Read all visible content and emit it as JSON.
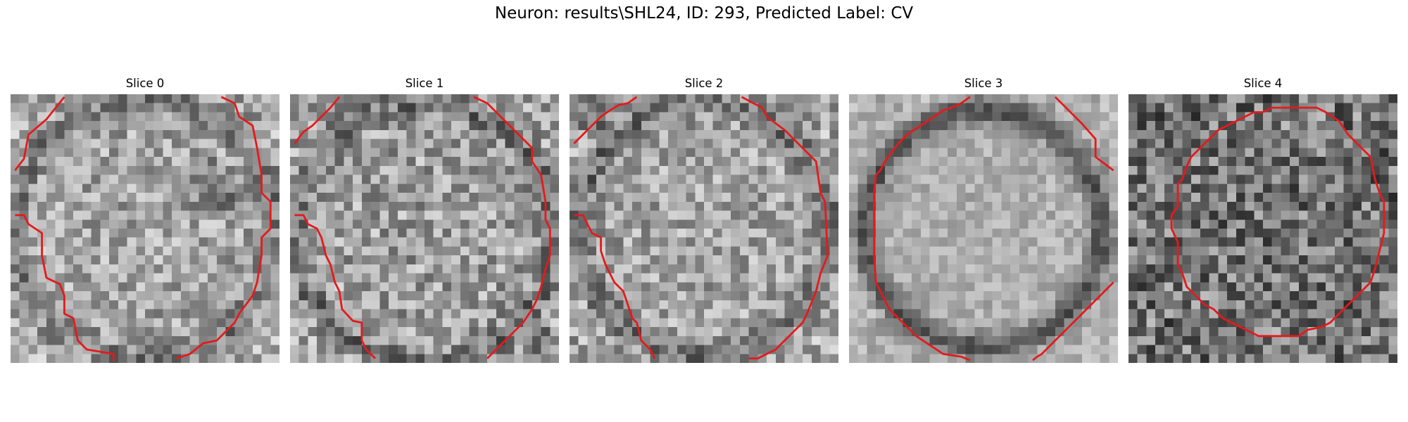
{
  "figure": {
    "title": "Neuron: results\\SHL24, ID: 293, Predicted Label: CV"
  },
  "panels": [
    {
      "title": "Slice 0"
    },
    {
      "title": "Slice 1"
    },
    {
      "title": "Slice 2"
    },
    {
      "title": "Slice 3"
    },
    {
      "title": "Slice 4"
    }
  ],
  "colors": {
    "contour": "#e41a1c",
    "background": "#ffffff"
  }
}
